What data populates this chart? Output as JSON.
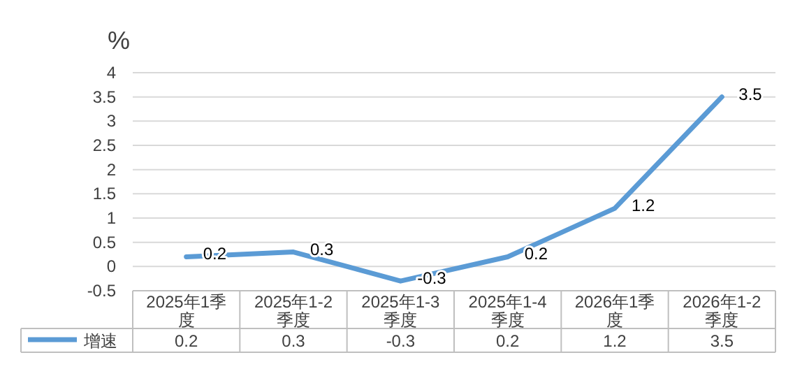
{
  "chart_data": {
    "type": "line",
    "ylabel": "%",
    "categories": [
      "2025年1季度",
      "2025年1-2季度",
      "2025年1-3季度",
      "2025年1-4季度",
      "2026年1季度",
      "2026年1-2季度"
    ],
    "series": [
      {
        "name": "增速",
        "color": "#5b9bd5",
        "values": [
          0.2,
          0.3,
          -0.3,
          0.2,
          1.2,
          3.5
        ],
        "value_labels": [
          "0.2",
          "0.3",
          "-0.3",
          "0.2",
          "1.2",
          "3.5"
        ]
      }
    ],
    "ylim": [
      -0.5,
      4
    ],
    "yticks": [
      -0.5,
      0,
      0.5,
      1,
      1.5,
      2,
      2.5,
      3,
      3.5,
      4
    ],
    "grid": "y",
    "data_labels": true,
    "legend": "bottom left",
    "marker": "none",
    "line_style": "solid"
  }
}
